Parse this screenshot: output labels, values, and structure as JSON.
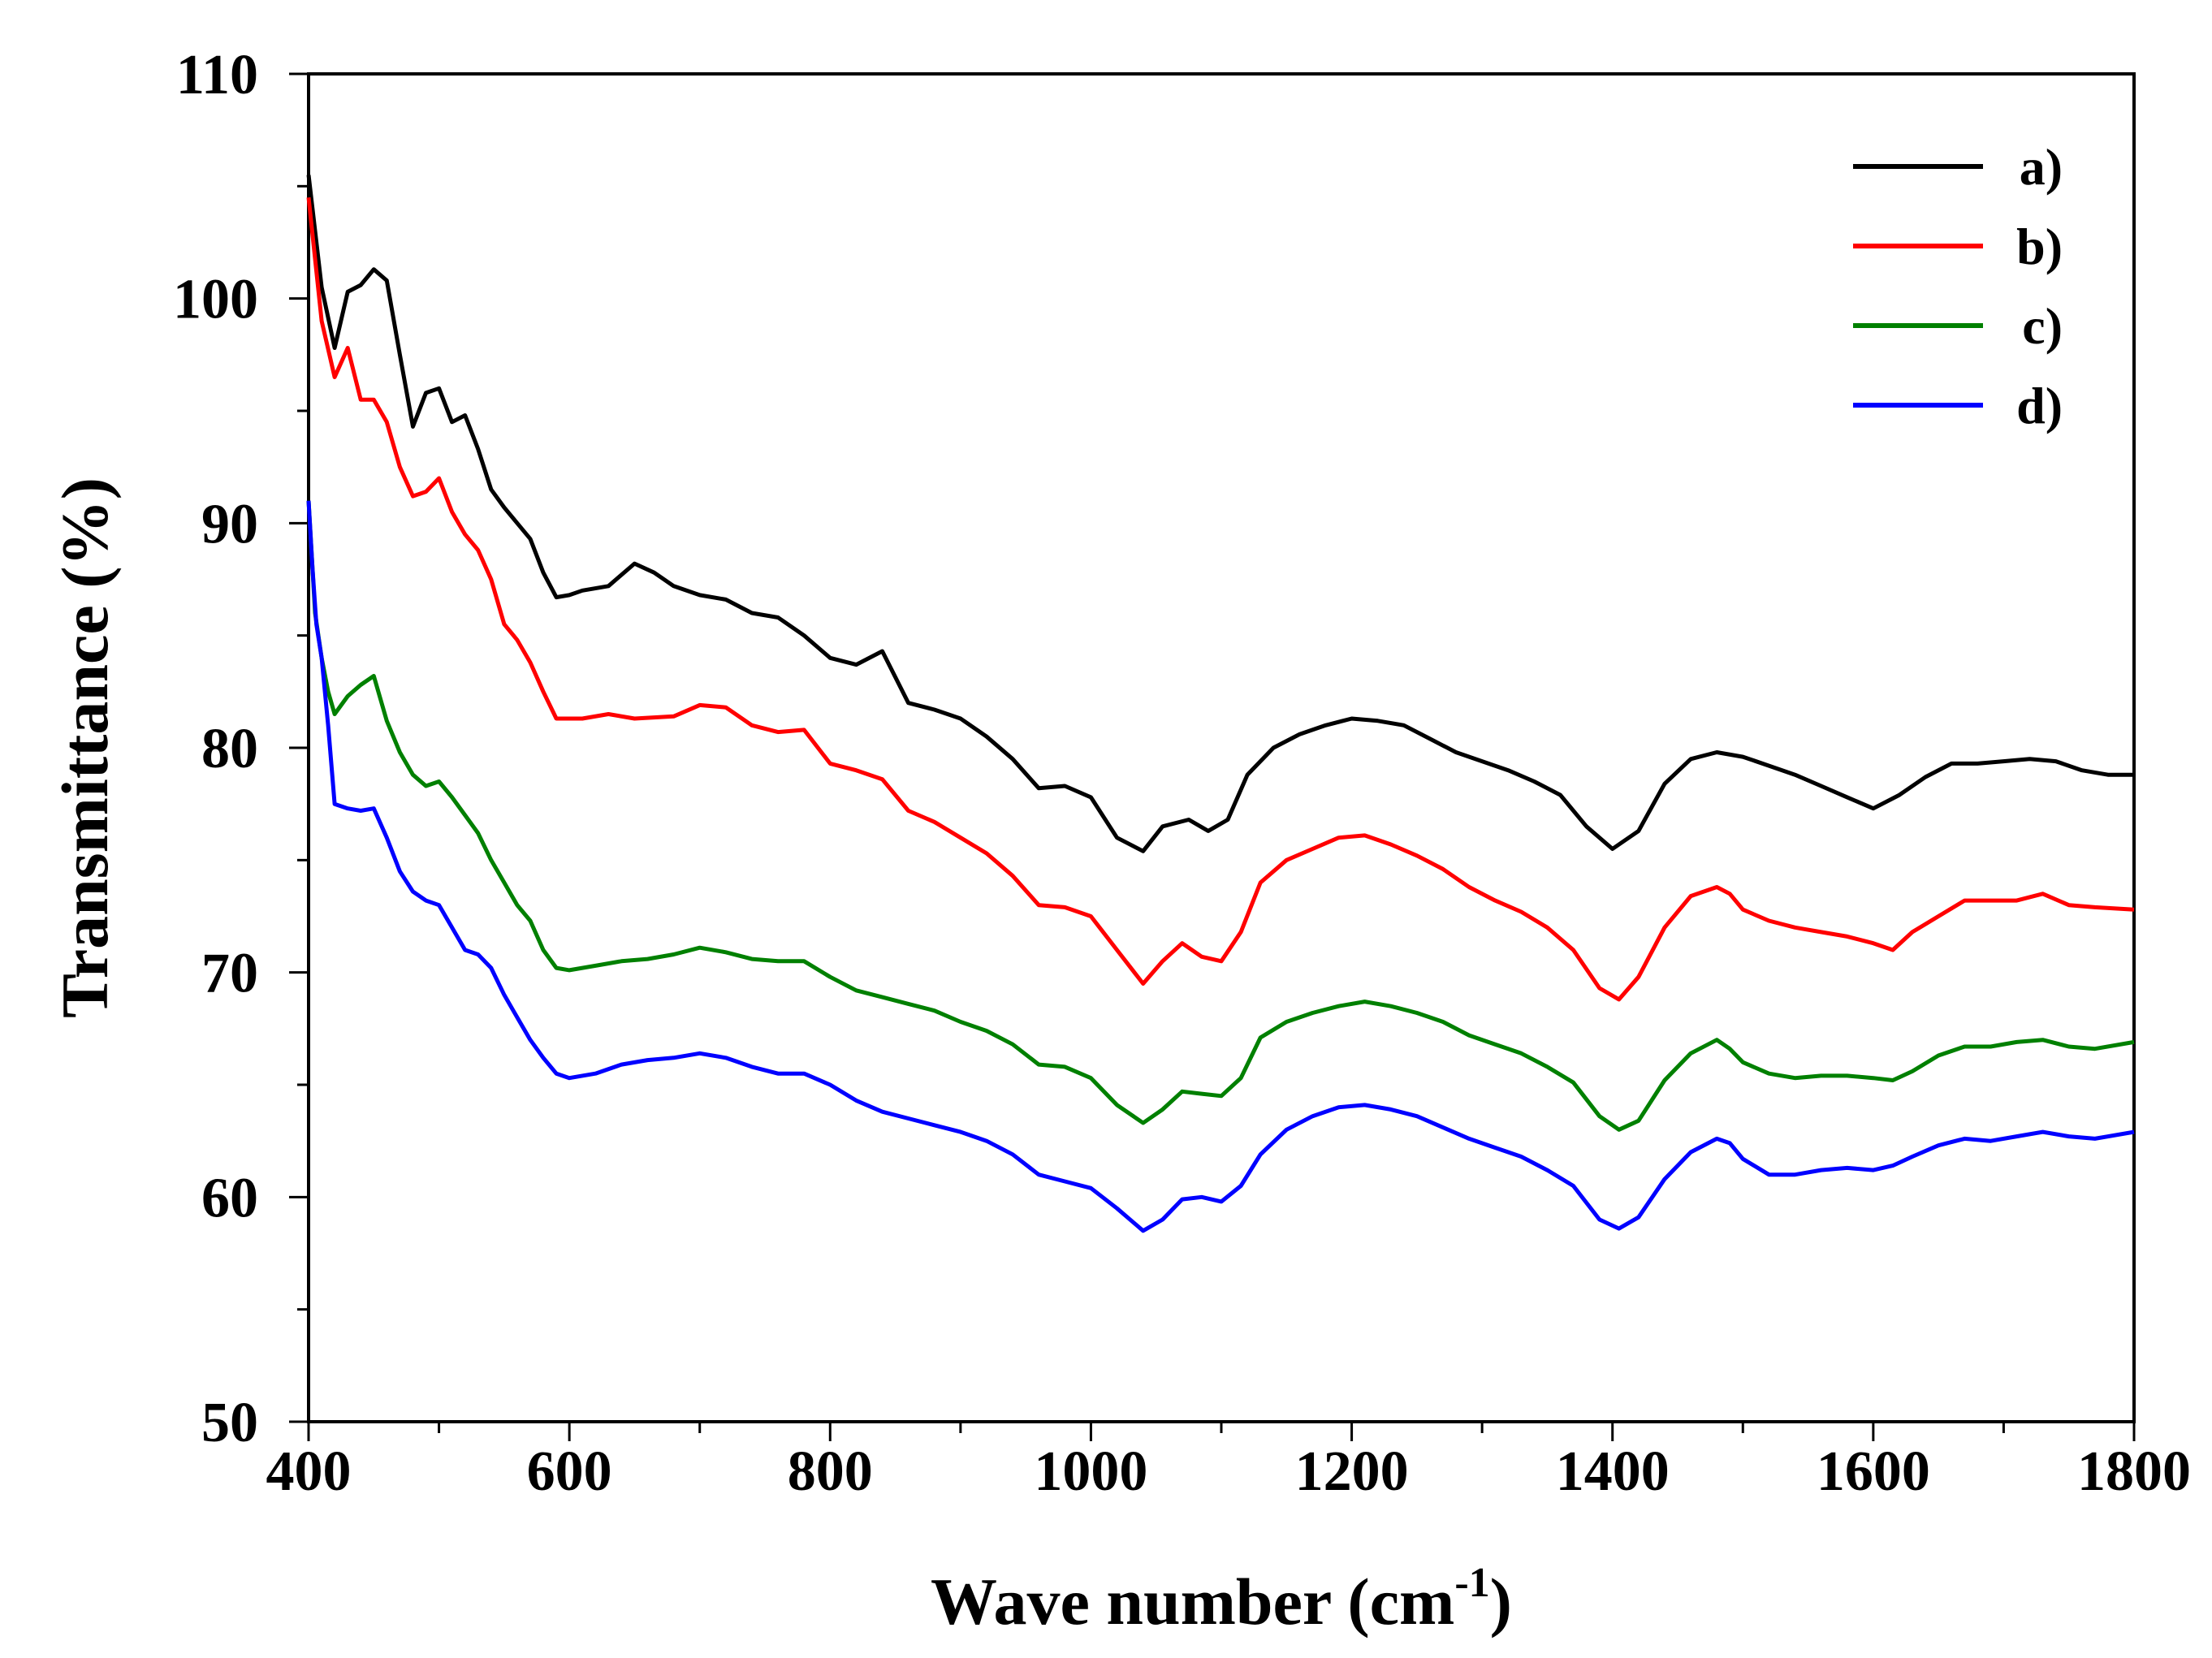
{
  "chart_data": {
    "type": "line",
    "title": "",
    "xlabel_main": "Wave number (cm",
    "xlabel_sup": "-1",
    "xlabel_tail": ")",
    "ylabel": "Transmittance (%)",
    "xlim": [
      400,
      1800
    ],
    "ylim": [
      50,
      110
    ],
    "xticks": [
      400,
      600,
      800,
      1000,
      1200,
      1400,
      1600,
      1800
    ],
    "yticks": [
      50,
      60,
      70,
      80,
      90,
      100,
      110
    ],
    "xtick_labels": [
      "400",
      "600",
      "800",
      "1000",
      "1200",
      "1400",
      "1600",
      "1800"
    ],
    "ytick_labels": [
      "50",
      "60",
      "70",
      "80",
      "90",
      "100",
      "110"
    ],
    "grid": false,
    "legend_position": "top-right",
    "series": [
      {
        "name": "a)",
        "color": "#000000",
        "x": [
          400,
          410,
          420,
          430,
          440,
          450,
          460,
          470,
          480,
          490,
          500,
          510,
          520,
          530,
          540,
          550,
          560,
          570,
          580,
          590,
          600,
          610,
          630,
          650,
          665,
          680,
          700,
          720,
          740,
          760,
          780,
          800,
          820,
          840,
          860,
          880,
          900,
          920,
          940,
          960,
          980,
          1000,
          1020,
          1040,
          1055,
          1075,
          1090,
          1105,
          1120,
          1140,
          1160,
          1180,
          1200,
          1220,
          1240,
          1260,
          1280,
          1300,
          1320,
          1340,
          1360,
          1380,
          1400,
          1420,
          1440,
          1460,
          1480,
          1500,
          1520,
          1540,
          1560,
          1580,
          1600,
          1620,
          1640,
          1660,
          1680,
          1700,
          1720,
          1740,
          1760,
          1780,
          1800
        ],
        "y": [
          105.5,
          100.5,
          97.8,
          100.3,
          100.6,
          101.3,
          100.8,
          97.5,
          94.3,
          95.8,
          96.0,
          94.5,
          94.8,
          93.3,
          91.5,
          90.7,
          90.0,
          89.3,
          87.8,
          86.7,
          86.8,
          87.0,
          87.2,
          88.2,
          87.8,
          87.2,
          86.8,
          86.6,
          86.0,
          85.8,
          85.0,
          84.0,
          83.7,
          84.3,
          82.0,
          81.7,
          81.3,
          80.5,
          79.5,
          78.2,
          78.3,
          77.8,
          76.0,
          75.4,
          76.5,
          76.8,
          76.3,
          76.8,
          78.8,
          80.0,
          80.6,
          81.0,
          81.3,
          81.2,
          81.0,
          80.4,
          79.8,
          79.4,
          79.0,
          78.5,
          77.9,
          76.5,
          75.5,
          76.3,
          78.4,
          79.5,
          79.8,
          79.6,
          79.2,
          78.8,
          78.3,
          77.8,
          77.3,
          77.9,
          78.7,
          79.3,
          79.3,
          79.4,
          79.5,
          79.4,
          79.0,
          78.8,
          78.8
        ]
      },
      {
        "name": "b)",
        "color": "#ff0000",
        "x": [
          400,
          410,
          420,
          430,
          440,
          450,
          460,
          470,
          480,
          490,
          500,
          510,
          520,
          530,
          540,
          550,
          560,
          570,
          580,
          590,
          600,
          610,
          630,
          650,
          680,
          700,
          720,
          740,
          760,
          780,
          800,
          820,
          840,
          860,
          880,
          900,
          920,
          940,
          960,
          980,
          1000,
          1020,
          1040,
          1055,
          1070,
          1085,
          1100,
          1115,
          1130,
          1150,
          1170,
          1190,
          1210,
          1230,
          1250,
          1270,
          1290,
          1310,
          1330,
          1350,
          1370,
          1390,
          1405,
          1420,
          1440,
          1460,
          1480,
          1490,
          1500,
          1520,
          1540,
          1560,
          1580,
          1600,
          1615,
          1630,
          1650,
          1670,
          1690,
          1710,
          1730,
          1750,
          1770,
          1800
        ],
        "y": [
          104.5,
          99.0,
          96.5,
          97.8,
          95.5,
          95.5,
          94.5,
          92.5,
          91.2,
          91.4,
          92.0,
          90.5,
          89.5,
          88.8,
          87.5,
          85.5,
          84.8,
          83.8,
          82.5,
          81.3,
          81.3,
          81.3,
          81.5,
          81.3,
          81.4,
          81.9,
          81.8,
          81.0,
          80.7,
          80.8,
          79.3,
          79.0,
          78.6,
          77.2,
          76.7,
          76.0,
          75.3,
          74.3,
          73.0,
          72.9,
          72.5,
          71.0,
          69.5,
          70.5,
          71.3,
          70.7,
          70.5,
          71.8,
          74.0,
          75.0,
          75.5,
          76.0,
          76.1,
          75.7,
          75.2,
          74.6,
          73.8,
          73.2,
          72.7,
          72.0,
          71.0,
          69.3,
          68.8,
          69.8,
          72.0,
          73.4,
          73.8,
          73.5,
          72.8,
          72.3,
          72.0,
          71.8,
          71.6,
          71.3,
          71.0,
          71.8,
          72.5,
          73.2,
          73.2,
          73.2,
          73.5,
          73.0,
          72.9,
          72.8
        ]
      },
      {
        "name": "c)",
        "color": "#008000",
        "x": [
          400,
          405,
          410,
          415,
          420,
          430,
          440,
          450,
          460,
          470,
          480,
          490,
          500,
          510,
          520,
          530,
          540,
          550,
          560,
          570,
          580,
          590,
          600,
          620,
          640,
          660,
          680,
          700,
          720,
          740,
          760,
          780,
          800,
          820,
          840,
          860,
          880,
          900,
          920,
          940,
          960,
          980,
          1000,
          1020,
          1040,
          1055,
          1070,
          1085,
          1100,
          1115,
          1130,
          1150,
          1170,
          1190,
          1210,
          1230,
          1250,
          1270,
          1290,
          1310,
          1330,
          1350,
          1370,
          1390,
          1405,
          1420,
          1440,
          1460,
          1480,
          1490,
          1500,
          1520,
          1540,
          1560,
          1580,
          1600,
          1615,
          1630,
          1650,
          1670,
          1690,
          1710,
          1730,
          1750,
          1770,
          1800
        ],
        "y": [
          91.0,
          86.0,
          84.0,
          82.5,
          81.5,
          82.3,
          82.8,
          83.2,
          81.2,
          79.8,
          78.8,
          78.3,
          78.5,
          77.8,
          77.0,
          76.2,
          75.0,
          74.0,
          73.0,
          72.3,
          71.0,
          70.2,
          70.1,
          70.3,
          70.5,
          70.6,
          70.8,
          71.1,
          70.9,
          70.6,
          70.5,
          70.5,
          69.8,
          69.2,
          68.9,
          68.6,
          68.3,
          67.8,
          67.4,
          66.8,
          65.9,
          65.8,
          65.3,
          64.1,
          63.3,
          63.9,
          64.7,
          64.6,
          64.5,
          65.3,
          67.1,
          67.8,
          68.2,
          68.5,
          68.7,
          68.5,
          68.2,
          67.8,
          67.2,
          66.8,
          66.4,
          65.8,
          65.1,
          63.6,
          63.0,
          63.4,
          65.2,
          66.4,
          67.0,
          66.6,
          66.0,
          65.5,
          65.3,
          65.4,
          65.4,
          65.3,
          65.2,
          65.6,
          66.3,
          66.7,
          66.7,
          66.9,
          67.0,
          66.7,
          66.6,
          66.9
        ]
      },
      {
        "name": "d)",
        "color": "#0000ff",
        "x": [
          400,
          403,
          406,
          410,
          415,
          420,
          430,
          440,
          450,
          460,
          470,
          480,
          490,
          500,
          510,
          520,
          530,
          540,
          550,
          560,
          570,
          580,
          590,
          600,
          620,
          640,
          660,
          680,
          700,
          720,
          740,
          760,
          780,
          800,
          820,
          840,
          860,
          880,
          900,
          920,
          940,
          960,
          980,
          1000,
          1020,
          1040,
          1055,
          1070,
          1085,
          1100,
          1115,
          1130,
          1150,
          1170,
          1190,
          1210,
          1230,
          1250,
          1270,
          1290,
          1310,
          1330,
          1350,
          1370,
          1390,
          1405,
          1420,
          1440,
          1460,
          1480,
          1490,
          1500,
          1520,
          1540,
          1560,
          1580,
          1600,
          1615,
          1630,
          1650,
          1670,
          1690,
          1710,
          1730,
          1750,
          1770,
          1800
        ],
        "y": [
          91.0,
          88.0,
          85.5,
          84.0,
          81.0,
          77.5,
          77.3,
          77.2,
          77.3,
          76.0,
          74.5,
          73.6,
          73.2,
          73.0,
          72.0,
          71.0,
          70.8,
          70.2,
          69.0,
          68.0,
          67.0,
          66.2,
          65.5,
          65.3,
          65.5,
          65.9,
          66.1,
          66.2,
          66.4,
          66.2,
          65.8,
          65.5,
          65.5,
          65.0,
          64.3,
          63.8,
          63.5,
          63.2,
          62.9,
          62.5,
          61.9,
          61.0,
          60.7,
          60.4,
          59.5,
          58.5,
          59.0,
          59.9,
          60.0,
          59.8,
          60.5,
          61.9,
          63.0,
          63.6,
          64.0,
          64.1,
          63.9,
          63.6,
          63.1,
          62.6,
          62.2,
          61.8,
          61.2,
          60.5,
          59.0,
          58.6,
          59.1,
          60.8,
          62.0,
          62.6,
          62.4,
          61.7,
          61.0,
          61.0,
          61.2,
          61.3,
          61.2,
          61.4,
          61.8,
          62.3,
          62.6,
          62.5,
          62.7,
          62.9,
          62.7,
          62.6,
          62.9
        ]
      }
    ]
  }
}
